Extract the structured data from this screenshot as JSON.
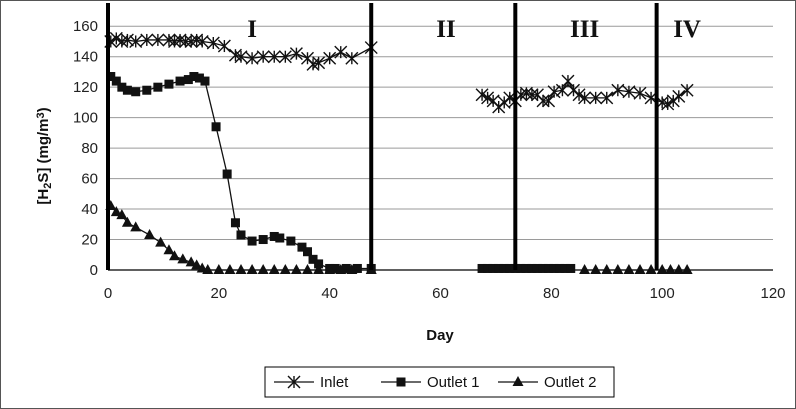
{
  "chart_data": {
    "type": "line",
    "title": "",
    "xlabel": "Day",
    "ylabel": "[H2S] (mg/m3)",
    "ylabel_parts": {
      "open": "[H",
      "sub": "2",
      "mid": "S] (mg/m",
      "sup": "3",
      "close": ")"
    },
    "xlim": [
      0,
      120
    ],
    "ylim": [
      0,
      170
    ],
    "xticks": [
      "0",
      "20",
      "40",
      "60",
      "80",
      "100",
      "120"
    ],
    "yticks": [
      "0",
      "20",
      "40",
      "60",
      "80",
      "100",
      "120",
      "140",
      "160"
    ],
    "grid": "horizontal",
    "legend_position": "bottom",
    "phase_boundaries": [
      47.5,
      73.5,
      99
    ],
    "phases": [
      {
        "label": "I",
        "x": 26
      },
      {
        "label": "II",
        "x": 61
      },
      {
        "label": "III",
        "x": 86
      },
      {
        "label": "IV",
        "x": 104.5
      }
    ],
    "series": [
      {
        "name": "Inlet",
        "marker": "star",
        "segments": [
          [
            [
              0.5,
              150
            ],
            [
              1.5,
              152
            ],
            [
              2.5,
              150
            ],
            [
              3.5,
              151
            ],
            [
              5,
              150
            ],
            [
              7,
              151
            ],
            [
              9,
              151
            ],
            [
              11,
              151
            ],
            [
              12,
              150
            ],
            [
              13,
              151
            ],
            [
              14,
              150
            ],
            [
              15,
              150
            ],
            [
              16,
              151
            ],
            [
              17,
              150
            ],
            [
              19,
              149
            ],
            [
              21,
              147
            ],
            [
              23,
              141
            ],
            [
              24,
              140
            ],
            [
              26,
              139
            ],
            [
              28,
              140
            ],
            [
              30,
              140
            ],
            [
              32,
              140
            ],
            [
              34,
              142
            ],
            [
              36,
              139
            ],
            [
              37,
              135
            ],
            [
              38,
              136
            ],
            [
              40,
              139
            ],
            [
              42,
              143
            ],
            [
              44,
              139
            ],
            [
              47.5,
              146
            ]
          ],
          [
            [
              67.5,
              115
            ],
            [
              68.5,
              113
            ],
            [
              69.5,
              111
            ],
            [
              70.5,
              107
            ],
            [
              71.5,
              110
            ],
            [
              72.5,
              113
            ],
            [
              73.5,
              111
            ],
            [
              74.5,
              115
            ],
            [
              75.5,
              116
            ],
            [
              76.5,
              115
            ],
            [
              77.5,
              115
            ],
            [
              78.5,
              111
            ],
            [
              79.5,
              111
            ],
            [
              80.5,
              117
            ],
            [
              82,
              118
            ],
            [
              83,
              124
            ],
            [
              84,
              118
            ],
            [
              85,
              115
            ],
            [
              86,
              113
            ],
            [
              88,
              113
            ],
            [
              90,
              113
            ],
            [
              92,
              118
            ],
            [
              94,
              117
            ],
            [
              96,
              116
            ],
            [
              98,
              113
            ],
            [
              100,
              110
            ],
            [
              101,
              109
            ],
            [
              102,
              111
            ],
            [
              103,
              114
            ],
            [
              104.5,
              118
            ]
          ]
        ]
      },
      {
        "name": "Outlet 1",
        "marker": "square",
        "segments": [
          [
            [
              0.5,
              127
            ],
            [
              1.5,
              124
            ],
            [
              2.5,
              120
            ],
            [
              3.5,
              118
            ],
            [
              5,
              117
            ],
            [
              7,
              118
            ],
            [
              9,
              120
            ],
            [
              11,
              122
            ],
            [
              13,
              124
            ],
            [
              14.5,
              125
            ],
            [
              15.5,
              127
            ],
            [
              16.5,
              126
            ],
            [
              17.5,
              124
            ],
            [
              19.5,
              94
            ],
            [
              21.5,
              63
            ],
            [
              23,
              31
            ],
            [
              24,
              23
            ],
            [
              26,
              19
            ],
            [
              28,
              20
            ],
            [
              30,
              22
            ],
            [
              31,
              21
            ],
            [
              33,
              19
            ],
            [
              35,
              15
            ],
            [
              36,
              12
            ],
            [
              37,
              7
            ],
            [
              38,
              4
            ],
            [
              40,
              1
            ],
            [
              41,
              1
            ],
            [
              43,
              1
            ],
            [
              45,
              1
            ],
            [
              47.5,
              1
            ]
          ],
          [
            [
              67.5,
              1
            ],
            [
              68.5,
              1
            ],
            [
              69.5,
              1
            ],
            [
              70.5,
              1
            ],
            [
              71.5,
              1
            ],
            [
              72.5,
              1
            ],
            [
              73.5,
              1
            ],
            [
              74.5,
              1
            ],
            [
              75.5,
              1
            ],
            [
              76.5,
              1
            ],
            [
              77.5,
              1
            ],
            [
              78.5,
              1
            ],
            [
              79.5,
              1
            ],
            [
              80.5,
              1
            ],
            [
              81.5,
              1
            ],
            [
              82.5,
              1
            ],
            [
              83.5,
              1
            ]
          ]
        ]
      },
      {
        "name": "Outlet 2",
        "marker": "triangle",
        "segments": [
          [
            [
              0.5,
              42
            ],
            [
              1.5,
              38
            ],
            [
              2.5,
              36
            ],
            [
              3.5,
              31
            ],
            [
              5,
              28
            ],
            [
              7.5,
              23
            ],
            [
              9.5,
              18
            ],
            [
              11,
              13
            ],
            [
              12,
              9
            ],
            [
              13.5,
              7
            ],
            [
              15,
              5
            ],
            [
              16,
              3
            ],
            [
              17,
              1
            ],
            [
              18,
              0
            ],
            [
              20,
              0
            ],
            [
              22,
              0
            ],
            [
              24,
              0
            ],
            [
              26,
              0
            ],
            [
              28,
              0
            ],
            [
              30,
              0
            ],
            [
              32,
              0
            ],
            [
              34,
              0
            ],
            [
              36,
              0
            ],
            [
              38,
              0
            ],
            [
              40,
              0
            ],
            [
              42,
              0
            ],
            [
              44,
              0
            ],
            [
              47.5,
              0
            ]
          ],
          [
            [
              86,
              0
            ],
            [
              88,
              0
            ],
            [
              90,
              0
            ],
            [
              92,
              0
            ],
            [
              94,
              0
            ],
            [
              96,
              0
            ],
            [
              98,
              0
            ],
            [
              100,
              0
            ],
            [
              101.5,
              0
            ],
            [
              103,
              0
            ],
            [
              104.5,
              0
            ]
          ]
        ]
      }
    ]
  }
}
